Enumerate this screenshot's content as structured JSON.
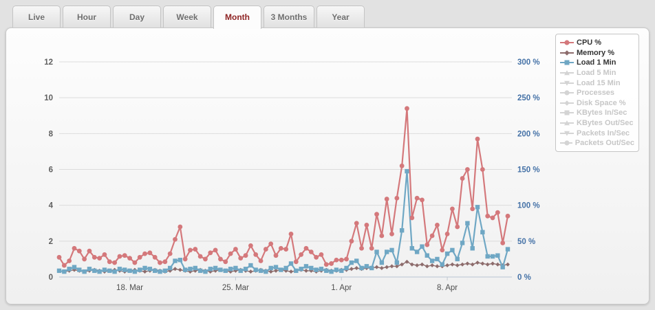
{
  "tabs": {
    "items": [
      {
        "id": "live",
        "label": "Live",
        "active": false
      },
      {
        "id": "hour",
        "label": "Hour",
        "active": false
      },
      {
        "id": "day",
        "label": "Day",
        "active": false
      },
      {
        "id": "week",
        "label": "Week",
        "active": false
      },
      {
        "id": "month",
        "label": "Month",
        "active": true
      },
      {
        "id": "3-months",
        "label": "3 Months",
        "active": false,
        "wide": true
      },
      {
        "id": "year",
        "label": "Year",
        "active": false
      }
    ]
  },
  "colors": {
    "cpu": "#d4787b",
    "memory": "#8d6c6c",
    "load1": "#6fa7c4",
    "inactive_marker": "#d4d4d4",
    "inactive_text": "#c6c6c6",
    "active_text": "#333333",
    "right_axis_text": "#4572a7",
    "left_axis_text": "#5f5f5f",
    "x_axis_text": "#4d4d4d",
    "grid": "#dcdcdc",
    "axis_line": "#b7c4d2"
  },
  "legend": {
    "items": [
      {
        "label": "CPU %",
        "marker": "circle",
        "active": true,
        "series": "cpu"
      },
      {
        "label": "Memory %",
        "marker": "diamond",
        "active": true,
        "series": "memory"
      },
      {
        "label": "Load 1 Min",
        "marker": "square",
        "active": true,
        "series": "load1"
      },
      {
        "label": "Load 5 Min",
        "marker": "triangle",
        "active": false
      },
      {
        "label": "Load 15 Min",
        "marker": "triangle-down",
        "active": false
      },
      {
        "label": "Processes",
        "marker": "circle",
        "active": false
      },
      {
        "label": "Disk Space %",
        "marker": "diamond",
        "active": false
      },
      {
        "label": "KBytes In/Sec",
        "marker": "square",
        "active": false
      },
      {
        "label": "KBytes Out/Sec",
        "marker": "triangle",
        "active": false
      },
      {
        "label": "Packets In/Sec",
        "marker": "triangle-down",
        "active": false
      },
      {
        "label": "Packets Out/Sec",
        "marker": "circle",
        "active": false
      }
    ]
  },
  "chart_data": {
    "type": "line",
    "title": "",
    "xlabel": "",
    "ylabel": "",
    "grid": true,
    "legend_position": "right",
    "left_axis": {
      "ticks": [
        0,
        2,
        4,
        6,
        8,
        10,
        12
      ],
      "range": [
        0,
        12
      ]
    },
    "right_axis": {
      "tick_labels": [
        "0 %",
        "50 %",
        "100 %",
        "150 %",
        "200 %",
        "250 %",
        "300 %"
      ],
      "range": [
        0,
        300
      ]
    },
    "x_ticks": [
      {
        "index": 14,
        "label": "18. Mar"
      },
      {
        "index": 35,
        "label": "25. Mar"
      },
      {
        "index": 56,
        "label": "1. Apr"
      },
      {
        "index": 77,
        "label": "8. Apr"
      }
    ],
    "series": [
      {
        "name": "CPU %",
        "key": "cpu",
        "marker": "circle",
        "axis": "left",
        "values": [
          1.1,
          0.65,
          0.9,
          1.6,
          1.45,
          1.0,
          1.45,
          1.1,
          1.05,
          1.25,
          0.85,
          0.8,
          1.15,
          1.2,
          1.05,
          0.8,
          1.1,
          1.3,
          1.35,
          1.1,
          0.8,
          0.85,
          1.3,
          2.1,
          2.8,
          1.0,
          1.5,
          1.55,
          1.15,
          1.0,
          1.35,
          1.5,
          1.0,
          0.85,
          1.3,
          1.55,
          1.05,
          1.2,
          1.75,
          1.25,
          0.9,
          1.55,
          1.85,
          1.2,
          1.6,
          1.55,
          2.4,
          0.85,
          1.25,
          1.6,
          1.4,
          1.1,
          1.25,
          0.7,
          0.75,
          0.95,
          0.95,
          1.0,
          2.0,
          3.0,
          1.6,
          2.9,
          1.6,
          3.5,
          2.3,
          4.35,
          2.4,
          4.4,
          6.2,
          9.4,
          3.3,
          4.4,
          4.3,
          1.8,
          2.3,
          2.9,
          1.5,
          2.4,
          3.8,
          2.8,
          5.5,
          6.0,
          3.8,
          7.7,
          6.0,
          3.4,
          3.3,
          3.6,
          1.9,
          3.4
        ]
      },
      {
        "name": "Memory %",
        "key": "memory",
        "marker": "diamond",
        "axis": "left",
        "values": [
          0.35,
          0.3,
          0.35,
          0.4,
          0.35,
          0.3,
          0.35,
          0.4,
          0.35,
          0.3,
          0.35,
          0.4,
          0.35,
          0.3,
          0.35,
          0.4,
          0.35,
          0.3,
          0.35,
          0.4,
          0.35,
          0.3,
          0.35,
          0.45,
          0.4,
          0.35,
          0.3,
          0.35,
          0.4,
          0.35,
          0.3,
          0.35,
          0.4,
          0.35,
          0.3,
          0.35,
          0.4,
          0.35,
          0.3,
          0.35,
          0.4,
          0.35,
          0.3,
          0.35,
          0.4,
          0.35,
          0.3,
          0.35,
          0.4,
          0.35,
          0.35,
          0.3,
          0.35,
          0.4,
          0.35,
          0.35,
          0.4,
          0.4,
          0.45,
          0.5,
          0.45,
          0.5,
          0.5,
          0.55,
          0.5,
          0.55,
          0.6,
          0.6,
          0.7,
          0.85,
          0.7,
          0.65,
          0.7,
          0.6,
          0.65,
          0.6,
          0.6,
          0.65,
          0.7,
          0.65,
          0.7,
          0.75,
          0.7,
          0.8,
          0.75,
          0.7,
          0.75,
          0.7,
          0.65,
          0.7
        ]
      },
      {
        "name": "Load 1 Min",
        "key": "load1",
        "marker": "square",
        "axis": "right",
        "values": [
          0.35,
          0.3,
          0.45,
          0.55,
          0.4,
          0.3,
          0.45,
          0.35,
          0.3,
          0.4,
          0.35,
          0.3,
          0.45,
          0.4,
          0.35,
          0.3,
          0.4,
          0.5,
          0.45,
          0.35,
          0.3,
          0.35,
          0.5,
          0.9,
          0.95,
          0.4,
          0.45,
          0.5,
          0.35,
          0.3,
          0.45,
          0.5,
          0.4,
          0.35,
          0.45,
          0.5,
          0.35,
          0.45,
          0.65,
          0.4,
          0.35,
          0.3,
          0.5,
          0.55,
          0.4,
          0.5,
          0.75,
          0.35,
          0.45,
          0.6,
          0.5,
          0.4,
          0.45,
          0.35,
          0.3,
          0.4,
          0.35,
          0.5,
          0.8,
          0.9,
          0.5,
          0.6,
          0.5,
          1.4,
          0.8,
          1.4,
          1.5,
          0.8,
          2.6,
          5.9,
          1.6,
          1.4,
          1.7,
          1.2,
          0.9,
          1.0,
          0.7,
          1.3,
          1.5,
          1.0,
          1.9,
          3.0,
          1.6,
          3.9,
          2.5,
          1.15,
          1.15,
          1.2,
          0.55,
          1.55
        ]
      }
    ]
  }
}
